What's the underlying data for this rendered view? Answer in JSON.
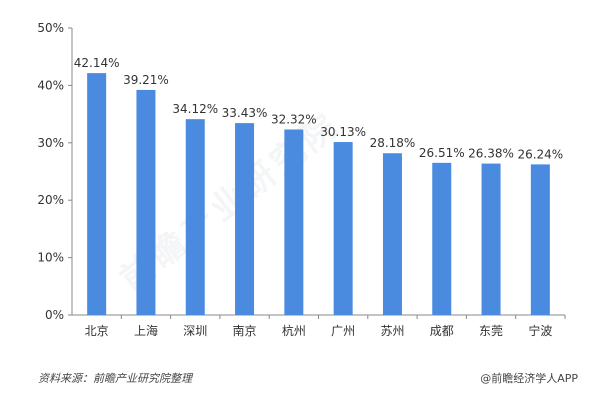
{
  "chart_data": {
    "type": "bar",
    "categories": [
      "北京",
      "上海",
      "深圳",
      "南京",
      "杭州",
      "广州",
      "苏州",
      "成都",
      "东莞",
      "宁波"
    ],
    "values": [
      42.14,
      39.21,
      34.12,
      33.43,
      32.32,
      30.13,
      28.18,
      26.51,
      26.38,
      26.24
    ],
    "value_labels": [
      "42.14%",
      "39.21%",
      "34.12%",
      "33.43%",
      "32.32%",
      "30.13%",
      "28.18%",
      "26.51%",
      "26.38%",
      "26.24%"
    ],
    "y_ticks": [
      "0%",
      "10%",
      "20%",
      "30%",
      "40%",
      "50%"
    ],
    "ylim": [
      0,
      50
    ],
    "grid": false,
    "bar_color": "#4a8be0"
  },
  "footer": {
    "source": "资料来源：前瞻产业研究院整理",
    "credit": "@前瞻经济学人APP"
  },
  "watermark": "前瞻产业研究院"
}
